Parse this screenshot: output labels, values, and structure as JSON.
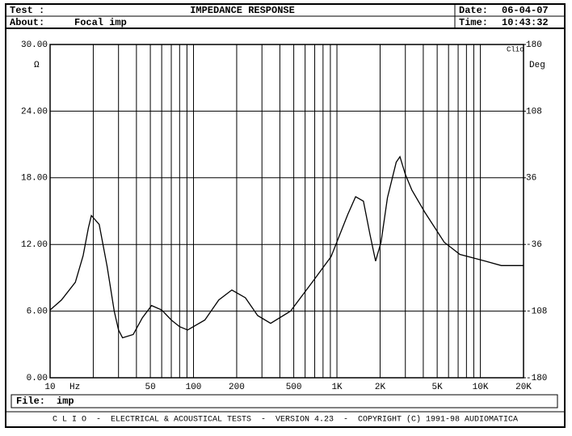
{
  "header": {
    "test_label": "Test :",
    "about_label": "About:",
    "about": "Focal imp",
    "date_label": "Date:",
    "date": "06-04-07",
    "time_label": "Time:",
    "time": "10:43:32",
    "file_label": "File:",
    "file": "imp",
    "footer": "C L I O  -  ELECTRICAL & ACOUSTICAL TESTS  -  VERSION 4.23  -  COPYRIGHT (C) 1991-98 AUDIOMATICA"
  },
  "chart_data": {
    "type": "line",
    "title": "IMPEDANCE RESPONSE",
    "xlabel": "Hz",
    "ylabel": "Ω",
    "y2label": "Deg",
    "brand": "Clio",
    "log_x": true,
    "grid": true,
    "color": "#000000",
    "x": [
      10,
      12,
      15,
      17,
      18.5,
      19.4,
      22,
      25,
      28,
      30,
      32,
      38,
      44,
      51,
      60,
      70,
      80,
      91,
      120,
      150,
      185,
      230,
      280,
      345,
      475,
      700,
      910,
      1190,
      1350,
      1530,
      1700,
      1860,
      2030,
      2250,
      2590,
      2750,
      3000,
      3330,
      4100,
      5600,
      7200,
      10800,
      14000,
      20000
    ],
    "values": [
      6.1,
      7.0,
      8.6,
      11.0,
      13.5,
      14.6,
      13.8,
      10.0,
      6.0,
      4.3,
      3.6,
      3.9,
      5.4,
      6.5,
      6.1,
      5.2,
      4.6,
      4.3,
      5.2,
      7.0,
      7.9,
      7.2,
      5.6,
      4.9,
      6.0,
      8.9,
      10.9,
      14.7,
      16.3,
      15.9,
      12.9,
      10.5,
      12.2,
      16.2,
      19.4,
      19.9,
      18.3,
      16.9,
      14.9,
      12.2,
      11.1,
      10.5,
      10.1,
      10.1
    ],
    "xlim": [
      10,
      20000
    ],
    "xticks": [
      10,
      50,
      100,
      200,
      500,
      {
        "value": 1000,
        "label": "1K"
      },
      {
        "value": 2000,
        "label": "2K"
      },
      {
        "value": 5000,
        "label": "5K"
      },
      {
        "value": 10000,
        "label": "10K"
      },
      {
        "value": 20000,
        "label": "20K"
      }
    ],
    "xgrid": [
      20,
      30,
      40,
      60,
      70,
      80,
      90,
      300,
      400,
      600,
      700,
      800,
      900,
      3000,
      4000,
      6000,
      7000,
      8000,
      9000
    ],
    "ylim": [
      0,
      30
    ],
    "yticks": [
      {
        "value": 0,
        "label": "0.00"
      },
      {
        "value": 6,
        "label": "6.00"
      },
      {
        "value": 12,
        "label": "12.00"
      },
      {
        "value": 18,
        "label": "18.00"
      },
      {
        "value": 24,
        "label": "24.00"
      },
      {
        "value": 30,
        "label": "30.00"
      }
    ],
    "y2lim": [
      -180,
      180
    ],
    "y2ticks": [
      -180,
      -108,
      -36,
      36,
      108,
      180
    ]
  }
}
